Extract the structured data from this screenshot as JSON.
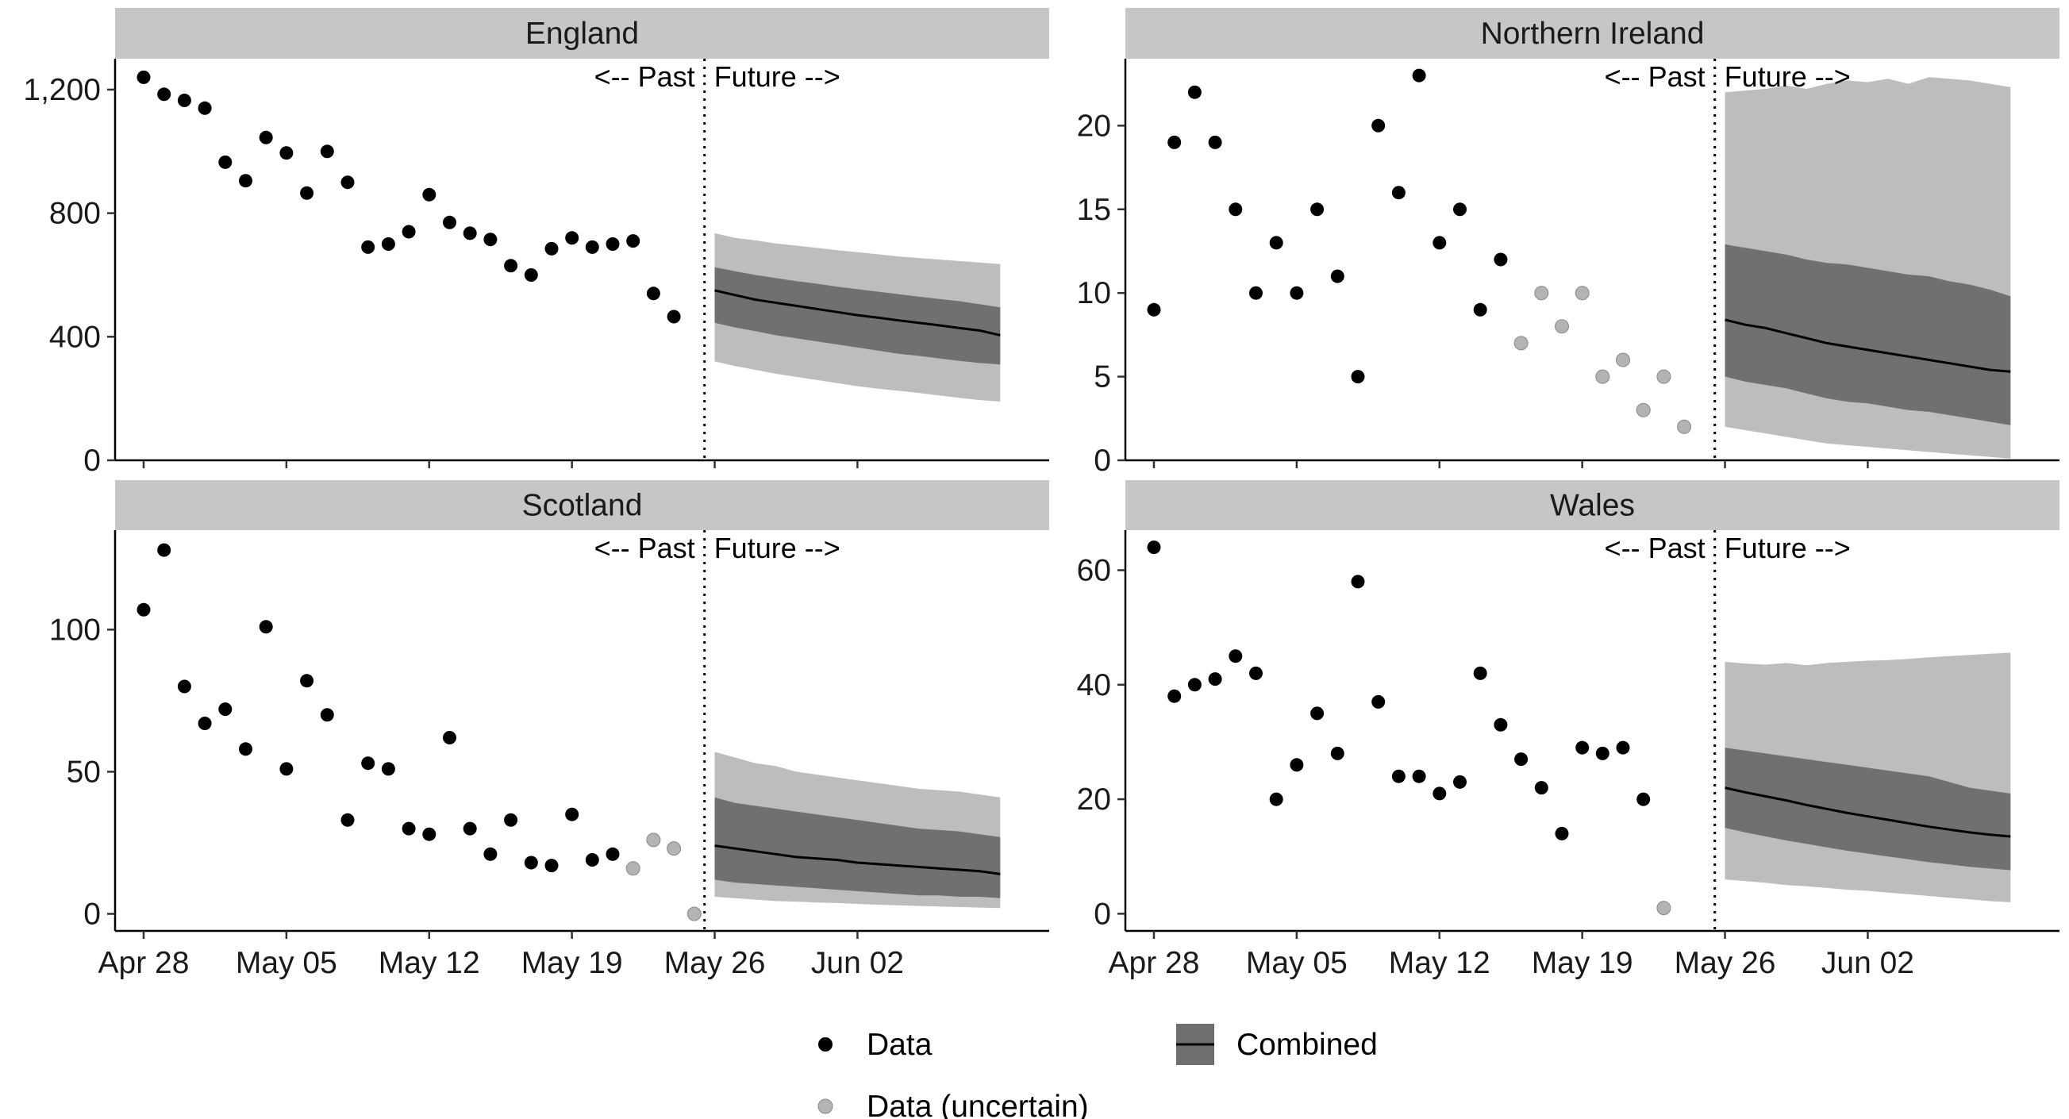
{
  "chart_data": {
    "type": "scatter",
    "layout": "facet-grid 2x2",
    "x_ticks": [
      "Apr 28",
      "May 05",
      "May 12",
      "May 19",
      "May 26",
      "Jun 02"
    ],
    "annotations": {
      "past": "<-- Past",
      "future": "Future -->"
    },
    "legend": {
      "placement": "bottom",
      "items": [
        {
          "label": "Data",
          "marker": "dot",
          "color": "#000000"
        },
        {
          "label": "Data (uncertain)",
          "marker": "dot",
          "color": "#b3b3b3"
        },
        {
          "label": "Combined",
          "marker": "band-with-line",
          "color": "#6e6e6e"
        }
      ]
    },
    "colors": {
      "data": "#000000",
      "uncertain": "#b3b3b3",
      "band_outer": "#bdbdbd",
      "band_inner": "#707070",
      "median": "#000000",
      "strip": "#c6c6c6"
    },
    "facets": [
      {
        "name": "England",
        "ylim": [
          0,
          1300
        ],
        "y_ticks": [
          0,
          400,
          800,
          1200
        ],
        "y_tick_labels": [
          "0",
          "400",
          "800",
          "1,200"
        ],
        "data": [
          [
            0,
            1240
          ],
          [
            1,
            1185
          ],
          [
            2,
            1165
          ],
          [
            3,
            1140
          ],
          [
            4,
            965
          ],
          [
            5,
            905
          ],
          [
            6,
            1045
          ],
          [
            7,
            995
          ],
          [
            8,
            865
          ],
          [
            9,
            1000
          ],
          [
            10,
            900
          ],
          [
            11,
            690
          ],
          [
            12,
            700
          ],
          [
            13,
            740
          ],
          [
            14,
            860
          ],
          [
            15,
            770
          ],
          [
            16,
            735
          ],
          [
            17,
            715
          ],
          [
            18,
            630
          ],
          [
            19,
            600
          ],
          [
            20,
            685
          ],
          [
            21,
            720
          ],
          [
            22,
            690
          ],
          [
            23,
            700
          ],
          [
            24,
            710
          ],
          [
            25,
            540
          ],
          [
            26,
            465
          ]
        ],
        "uncertain": [],
        "forecast": {
          "days": [
            28,
            29,
            30,
            31,
            32,
            33,
            34,
            35,
            36,
            37,
            38,
            39,
            40,
            41,
            42
          ],
          "median": [
            550,
            535,
            520,
            510,
            500,
            490,
            480,
            470,
            462,
            453,
            445,
            437,
            428,
            420,
            405
          ],
          "inner_lo": [
            445,
            430,
            418,
            405,
            395,
            385,
            375,
            365,
            355,
            345,
            338,
            330,
            322,
            315,
            310
          ],
          "inner_hi": [
            625,
            612,
            600,
            590,
            580,
            572,
            562,
            554,
            546,
            538,
            530,
            522,
            515,
            505,
            495
          ],
          "outer_lo": [
            320,
            305,
            293,
            280,
            270,
            260,
            250,
            240,
            232,
            225,
            218,
            210,
            202,
            195,
            190
          ],
          "outer_hi": [
            735,
            720,
            712,
            702,
            695,
            688,
            680,
            674,
            667,
            660,
            655,
            650,
            645,
            640,
            635
          ]
        }
      },
      {
        "name": "Northern Ireland",
        "ylim": [
          0,
          24
        ],
        "y_ticks": [
          0,
          5,
          10,
          15,
          20
        ],
        "y_tick_labels": [
          "0",
          "5",
          "10",
          "15",
          "20"
        ],
        "data": [
          [
            0,
            9
          ],
          [
            1,
            19
          ],
          [
            2,
            22
          ],
          [
            3,
            19
          ],
          [
            4,
            15
          ],
          [
            5,
            10
          ],
          [
            6,
            13
          ],
          [
            7,
            10
          ],
          [
            8,
            15
          ],
          [
            9,
            11
          ],
          [
            10,
            5
          ],
          [
            11,
            20
          ],
          [
            12,
            16
          ],
          [
            13,
            23
          ],
          [
            14,
            13
          ],
          [
            15,
            15
          ],
          [
            16,
            9
          ],
          [
            17,
            12
          ]
        ],
        "uncertain": [
          [
            18,
            7
          ],
          [
            19,
            10
          ],
          [
            20,
            8
          ],
          [
            21,
            10
          ],
          [
            22,
            5
          ],
          [
            23,
            6
          ],
          [
            24,
            3
          ],
          [
            25,
            5
          ],
          [
            26,
            2
          ]
        ],
        "forecast": {
          "days": [
            28,
            29,
            30,
            31,
            32,
            33,
            34,
            35,
            36,
            37,
            38,
            39,
            40,
            41,
            42
          ],
          "median": [
            8.4,
            8.1,
            7.9,
            7.6,
            7.3,
            7.0,
            6.8,
            6.6,
            6.4,
            6.2,
            6.0,
            5.8,
            5.6,
            5.4,
            5.3
          ],
          "inner_lo": [
            5.0,
            4.7,
            4.5,
            4.3,
            4.0,
            3.7,
            3.5,
            3.4,
            3.2,
            3.0,
            2.9,
            2.7,
            2.5,
            2.3,
            2.1
          ],
          "inner_hi": [
            12.9,
            12.7,
            12.5,
            12.3,
            12.0,
            11.8,
            11.7,
            11.5,
            11.3,
            11.1,
            11.0,
            10.7,
            10.5,
            10.2,
            9.8
          ],
          "outer_lo": [
            2.0,
            1.8,
            1.6,
            1.4,
            1.2,
            1.0,
            0.9,
            0.8,
            0.7,
            0.6,
            0.5,
            0.4,
            0.3,
            0.2,
            0.1
          ],
          "outer_hi": [
            22.0,
            22.1,
            22.2,
            22.4,
            22.2,
            22.5,
            22.7,
            22.6,
            22.8,
            22.5,
            22.9,
            22.8,
            22.7,
            22.5,
            22.3
          ]
        }
      },
      {
        "name": "Scotland",
        "ylim": [
          -6,
          135
        ],
        "y_ticks": [
          0,
          50,
          100
        ],
        "y_tick_labels": [
          "0",
          "50",
          "100"
        ],
        "data": [
          [
            0,
            107
          ],
          [
            1,
            128
          ],
          [
            2,
            80
          ],
          [
            3,
            67
          ],
          [
            4,
            72
          ],
          [
            5,
            58
          ],
          [
            6,
            101
          ],
          [
            7,
            51
          ],
          [
            8,
            82
          ],
          [
            9,
            70
          ],
          [
            10,
            33
          ],
          [
            11,
            53
          ],
          [
            12,
            51
          ],
          [
            13,
            30
          ],
          [
            14,
            28
          ],
          [
            15,
            62
          ],
          [
            16,
            30
          ],
          [
            17,
            21
          ],
          [
            18,
            33
          ],
          [
            19,
            18
          ],
          [
            20,
            17
          ],
          [
            21,
            35
          ],
          [
            22,
            19
          ],
          [
            23,
            21
          ]
        ],
        "uncertain": [
          [
            24,
            16
          ],
          [
            25,
            26
          ],
          [
            26,
            23
          ],
          [
            27,
            0
          ]
        ],
        "forecast": {
          "days": [
            28,
            29,
            30,
            31,
            32,
            33,
            34,
            35,
            36,
            37,
            38,
            39,
            40,
            41,
            42
          ],
          "median": [
            24,
            23,
            22,
            21,
            20,
            19.5,
            19,
            18,
            17.5,
            17,
            16.5,
            16,
            15.5,
            15,
            14
          ],
          "inner_lo": [
            12,
            11,
            10.5,
            10,
            9.5,
            9,
            8.5,
            8,
            7.5,
            7,
            6.5,
            6.5,
            6,
            6,
            5.5
          ],
          "inner_hi": [
            41,
            39,
            38,
            37,
            36,
            35,
            34,
            33,
            32,
            31,
            30,
            29.5,
            29,
            28,
            27
          ],
          "outer_lo": [
            6,
            5.5,
            5,
            4.5,
            4.3,
            4,
            3.8,
            3.5,
            3.2,
            3,
            2.8,
            2.6,
            2.4,
            2.2,
            2
          ],
          "outer_hi": [
            57,
            55,
            53,
            52,
            50,
            49,
            48,
            47,
            46,
            45,
            44,
            43.5,
            43,
            42,
            41
          ]
        }
      },
      {
        "name": "Wales",
        "ylim": [
          -3,
          67
        ],
        "y_ticks": [
          0,
          20,
          40,
          60
        ],
        "y_tick_labels": [
          "0",
          "20",
          "40",
          "60"
        ],
        "data": [
          [
            0,
            64
          ],
          [
            1,
            38
          ],
          [
            2,
            40
          ],
          [
            3,
            41
          ],
          [
            4,
            45
          ],
          [
            5,
            42
          ],
          [
            6,
            20
          ],
          [
            7,
            26
          ],
          [
            8,
            35
          ],
          [
            9,
            28
          ],
          [
            10,
            58
          ],
          [
            11,
            37
          ],
          [
            12,
            24
          ],
          [
            13,
            24
          ],
          [
            14,
            21
          ],
          [
            15,
            23
          ],
          [
            16,
            42
          ],
          [
            17,
            33
          ],
          [
            18,
            27
          ],
          [
            19,
            22
          ],
          [
            20,
            14
          ],
          [
            21,
            29
          ],
          [
            22,
            28
          ],
          [
            23,
            29
          ],
          [
            24,
            20
          ]
        ],
        "uncertain": [
          [
            25,
            1
          ]
        ],
        "forecast": {
          "days": [
            28,
            29,
            30,
            31,
            32,
            33,
            34,
            35,
            36,
            37,
            38,
            39,
            40,
            41,
            42
          ],
          "median": [
            22,
            21.2,
            20.5,
            19.8,
            19,
            18.3,
            17.6,
            17,
            16.4,
            15.8,
            15.2,
            14.7,
            14.2,
            13.8,
            13.5
          ],
          "inner_lo": [
            15,
            14.2,
            13.5,
            12.8,
            12.2,
            11.6,
            11,
            10.5,
            10,
            9.5,
            9,
            8.6,
            8.2,
            7.9,
            7.6
          ],
          "inner_hi": [
            29,
            28.5,
            28,
            27.5,
            27,
            26.5,
            26,
            25.5,
            25,
            24.5,
            24,
            23,
            22,
            21.5,
            21
          ],
          "outer_lo": [
            6,
            5.7,
            5.4,
            5,
            4.8,
            4.5,
            4.2,
            4,
            3.7,
            3.4,
            3.1,
            2.8,
            2.5,
            2.2,
            2
          ],
          "outer_hi": [
            44,
            43.7,
            43.5,
            43.8,
            43.4,
            43.8,
            44,
            44.2,
            44.3,
            44.5,
            44.8,
            45,
            45.2,
            45.4,
            45.6
          ]
        }
      }
    ]
  }
}
